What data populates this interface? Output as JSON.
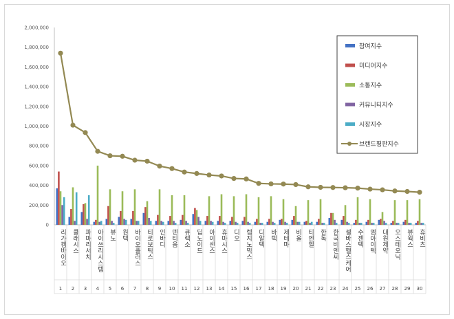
{
  "chart_data": {
    "type": "bar",
    "title": "",
    "xlabel": "",
    "ylabel": "",
    "ylim": [
      0,
      2000000
    ],
    "yticks": [
      "0",
      "200,000",
      "400,000",
      "600,000",
      "800,000",
      "1,000,000",
      "1,200,000",
      "1,400,000",
      "1,600,000",
      "1,800,000",
      "2,000,000"
    ],
    "grid": false,
    "legend_position": "top-right",
    "categories": [
      "리가켐바이오",
      "클래시스",
      "파마리서치",
      "아이쓰리시스템",
      "뷰노",
      "원텍",
      "바이오플러스",
      "티로보틱스",
      "인바디",
      "덴티움",
      "큐렉소",
      "딥노이드",
      "아이센스",
      "휴마시스",
      "디오",
      "렘지노믹스",
      "디알텍",
      "바텍",
      "제테마",
      "비올",
      "티엔엘",
      "한독",
      "한국비엔씨",
      "셀바스헬스케어",
      "수젠텍",
      "엠아이텍",
      "대원제약",
      "오스테오닉",
      "뷰웍스",
      "휴비츠"
    ],
    "ranks": [
      "1",
      "2",
      "3",
      "4",
      "5",
      "6",
      "7",
      "8",
      "9",
      "10",
      "11",
      "12",
      "13",
      "14",
      "15",
      "16",
      "17",
      "18",
      "19",
      "20",
      "21",
      "22",
      "23",
      "24",
      "25",
      "26",
      "27",
      "28",
      "29",
      "30"
    ],
    "series": [
      {
        "name": "참여지수",
        "kind": "bar",
        "color": "#4472c4",
        "values": [
          370000,
          80000,
          130000,
          30000,
          60000,
          80000,
          60000,
          120000,
          40000,
          40000,
          50000,
          110000,
          40000,
          40000,
          40000,
          40000,
          30000,
          30000,
          50000,
          50000,
          30000,
          30000,
          70000,
          50000,
          20000,
          30000,
          50000,
          20000,
          30000,
          20000
        ]
      },
      {
        "name": "미디어지수",
        "kind": "bar",
        "color": "#c0504d",
        "values": [
          540000,
          160000,
          210000,
          50000,
          190000,
          140000,
          140000,
          180000,
          100000,
          90000,
          100000,
          170000,
          90000,
          90000,
          80000,
          80000,
          60000,
          60000,
          60000,
          90000,
          40000,
          60000,
          120000,
          90000,
          50000,
          50000,
          60000,
          40000,
          50000,
          40000
        ]
      },
      {
        "name": "소통지수",
        "kind": "bar",
        "color": "#9bbb59",
        "values": [
          340000,
          380000,
          220000,
          600000,
          360000,
          340000,
          360000,
          240000,
          360000,
          300000,
          300000,
          150000,
          290000,
          310000,
          290000,
          310000,
          280000,
          290000,
          260000,
          190000,
          250000,
          260000,
          120000,
          200000,
          280000,
          260000,
          130000,
          250000,
          250000,
          260000
        ]
      },
      {
        "name": "커뮤니티지수",
        "kind": "bar",
        "color": "#8064a2",
        "values": [
          200000,
          40000,
          60000,
          30000,
          40000,
          60000,
          40000,
          70000,
          40000,
          40000,
          40000,
          80000,
          40000,
          30000,
          30000,
          30000,
          20000,
          30000,
          30000,
          30000,
          20000,
          20000,
          50000,
          30000,
          20000,
          20000,
          40000,
          20000,
          20000,
          20000
        ]
      },
      {
        "name": "시장지수",
        "kind": "bar",
        "color": "#4bacc6",
        "values": [
          280000,
          330000,
          300000,
          40000,
          20000,
          50000,
          40000,
          40000,
          30000,
          20000,
          20000,
          40000,
          30000,
          20000,
          20000,
          20000,
          20000,
          20000,
          20000,
          30000,
          30000,
          20000,
          20000,
          20000,
          20000,
          20000,
          20000,
          20000,
          20000,
          20000
        ]
      },
      {
        "name": "브랜드평판지수",
        "kind": "line",
        "color": "#938953",
        "values": [
          1740000,
          1010000,
          935000,
          745000,
          700000,
          695000,
          655000,
          645000,
          595000,
          570000,
          535000,
          520000,
          505000,
          495000,
          470000,
          465000,
          420000,
          415000,
          413000,
          408000,
          385000,
          380000,
          378000,
          376000,
          372000,
          362000,
          355000,
          343000,
          338000,
          330000
        ]
      }
    ]
  }
}
